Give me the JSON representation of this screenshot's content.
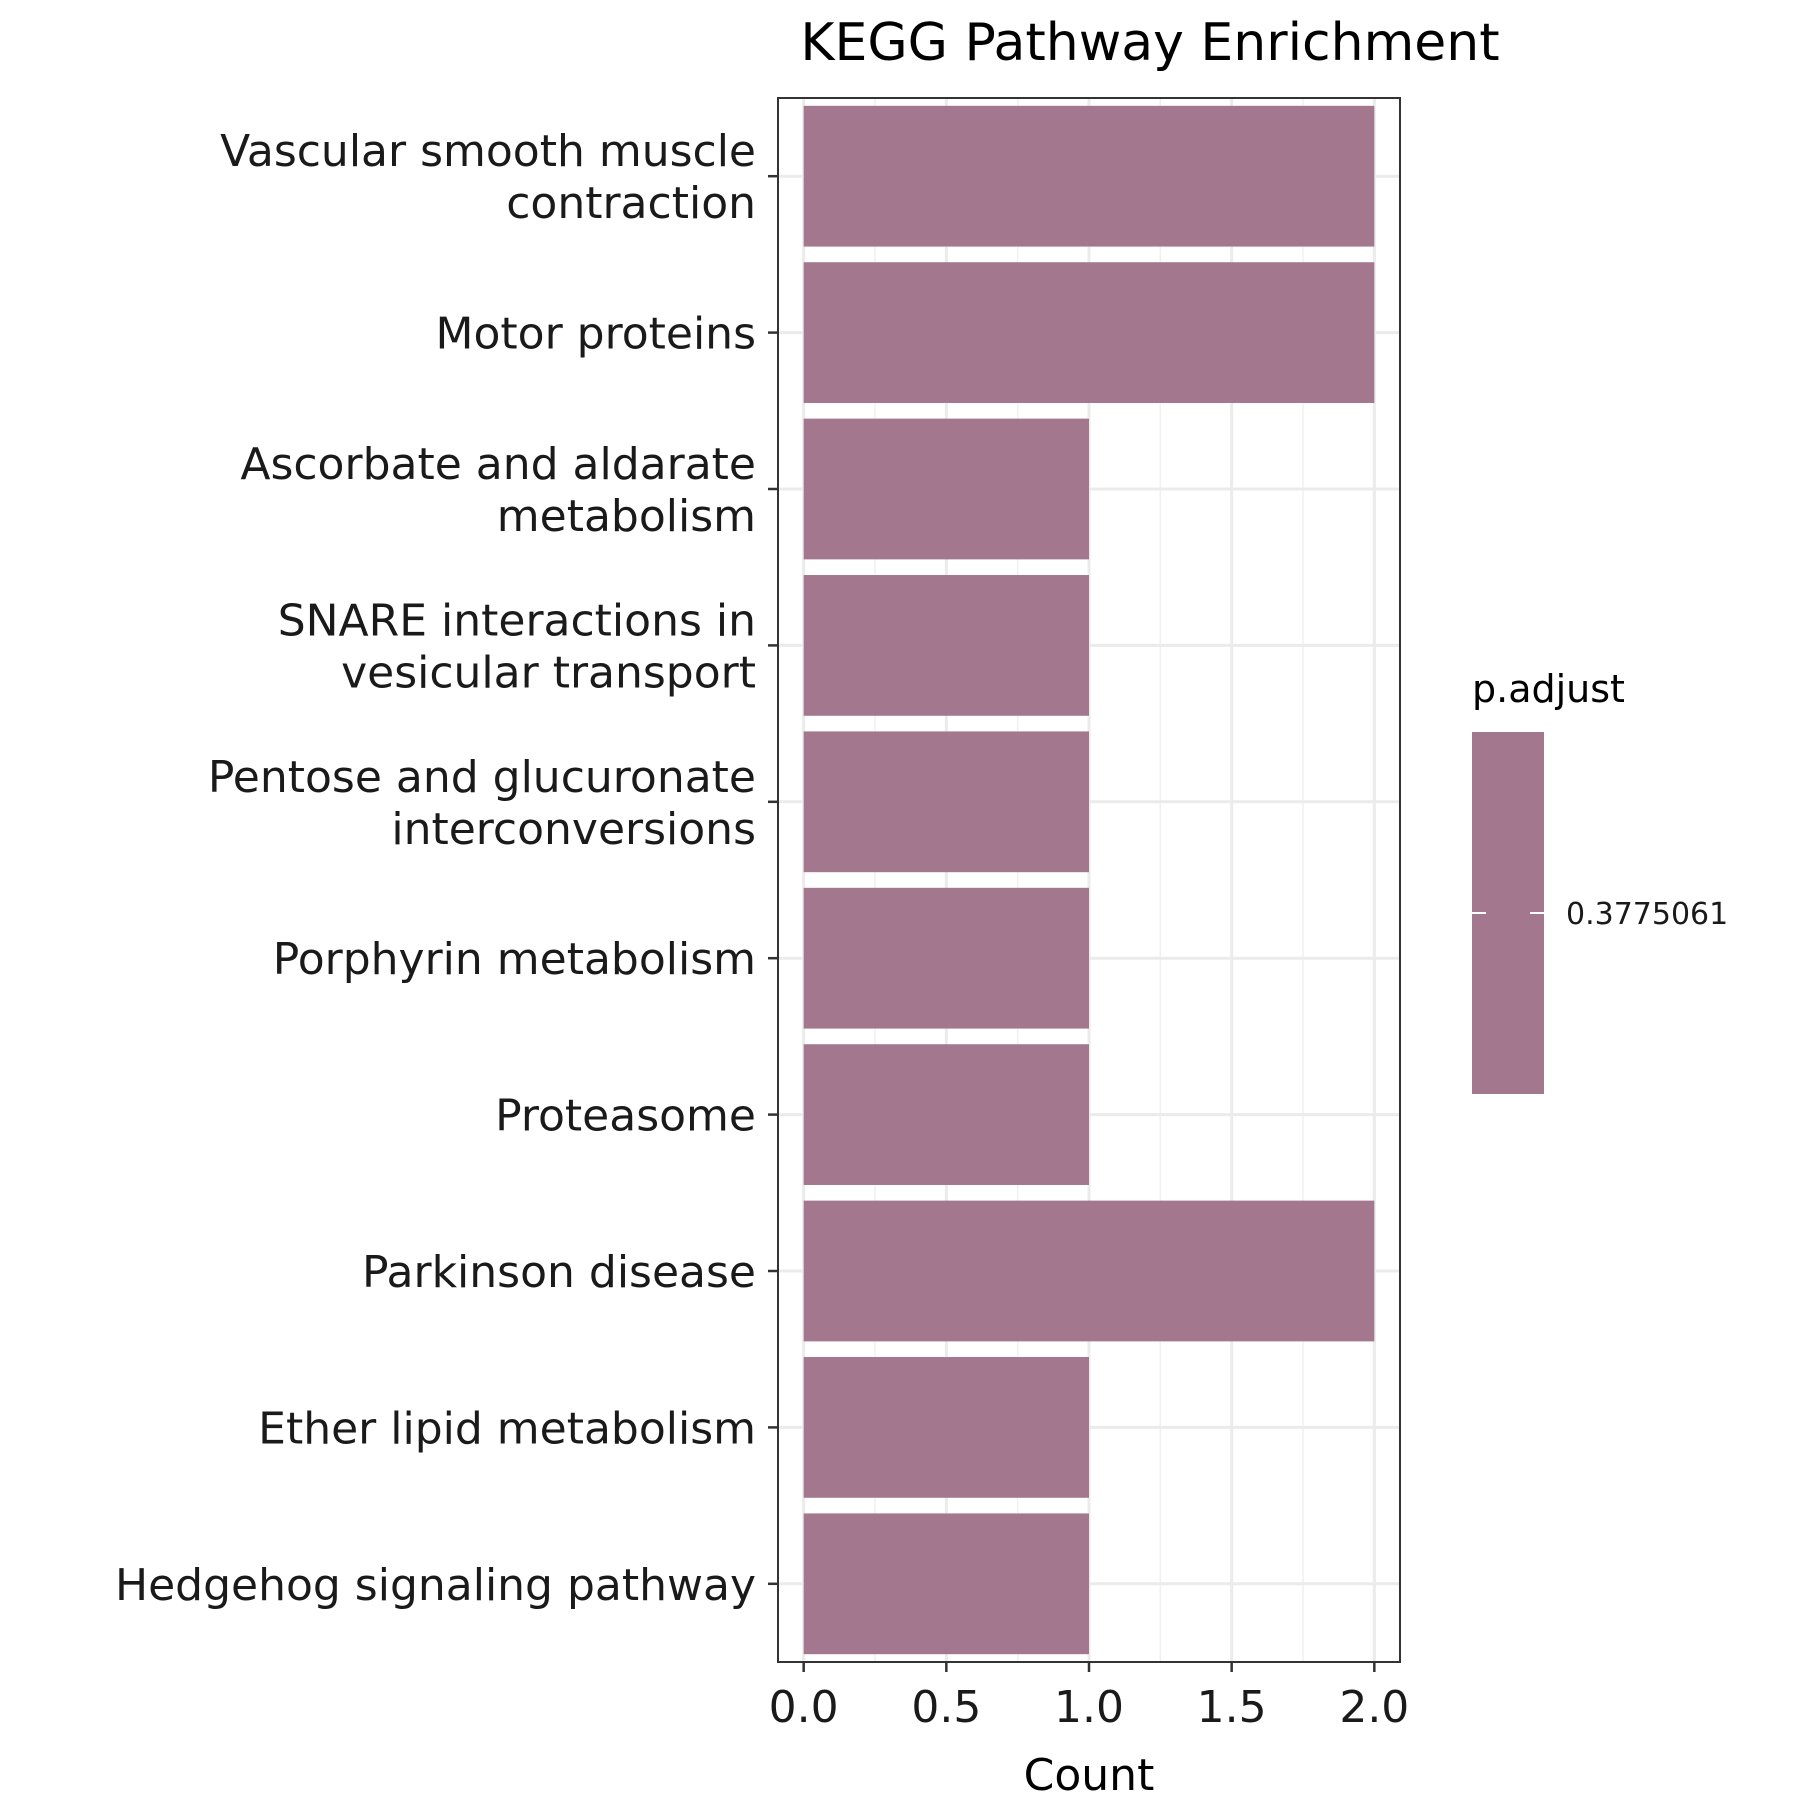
{
  "chart_data": {
    "type": "bar",
    "orientation": "horizontal",
    "title": "KEGG Pathway Enrichment",
    "xlabel": "Count",
    "ylabel": "",
    "categories": [
      [
        "Vascular smooth muscle",
        "contraction"
      ],
      [
        "Motor proteins"
      ],
      [
        "Ascorbate and aldarate",
        "metabolism"
      ],
      [
        "SNARE interactions in",
        "vesicular transport"
      ],
      [
        "Pentose and glucuronate",
        "interconversions"
      ],
      [
        "Porphyrin metabolism"
      ],
      [
        "Proteasome"
      ],
      [
        "Parkinson disease"
      ],
      [
        "Ether lipid metabolism"
      ],
      [
        "Hedgehog signaling pathway"
      ]
    ],
    "values": [
      2,
      2,
      1,
      1,
      1,
      1,
      1,
      2,
      1,
      1
    ],
    "xlim": [
      -0.09,
      2.09
    ],
    "xticks": [
      0.0,
      0.5,
      1.0,
      1.5,
      2.0
    ],
    "xtick_labels": [
      "0.0",
      "0.5",
      "1.0",
      "1.5",
      "2.0"
    ],
    "grid": true,
    "bar_color": "#a3778e",
    "legend": {
      "title": "p.adjust",
      "label": "0.3775061",
      "placement": "right"
    }
  }
}
